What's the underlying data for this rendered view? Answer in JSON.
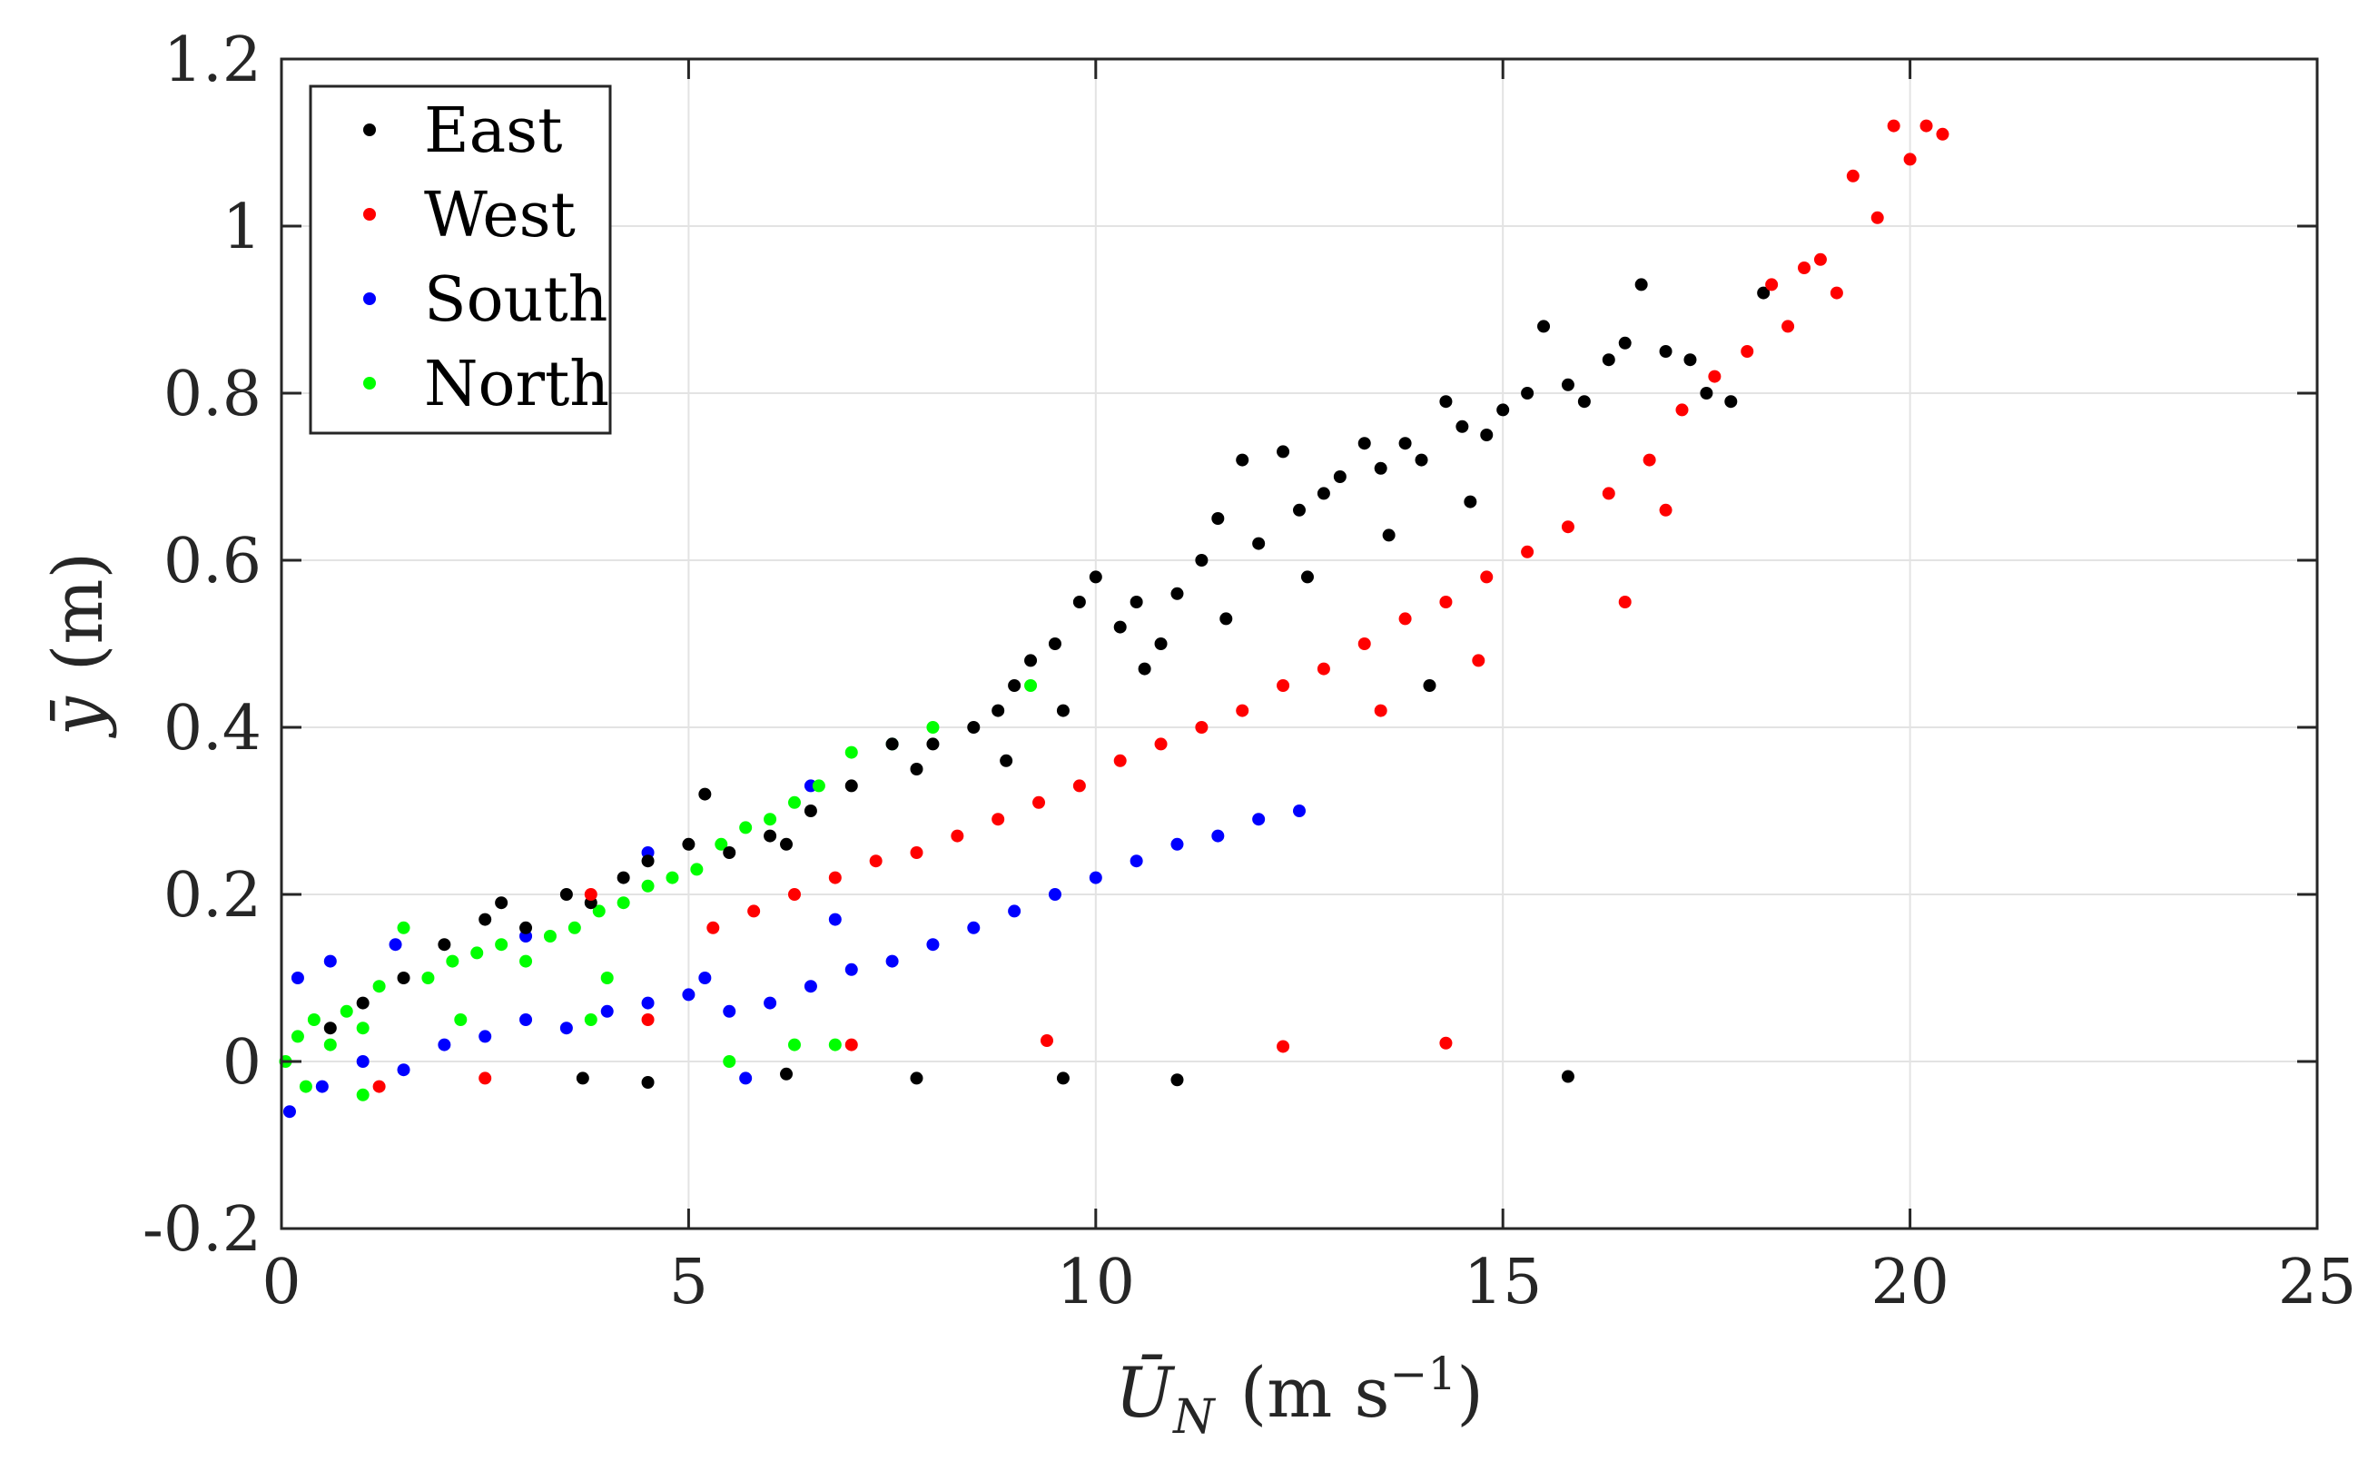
{
  "chart_data": {
    "type": "scatter",
    "title": "",
    "xlabel": "Ū_N (m s⁻¹)",
    "xlabel_parts": {
      "symbol": "Ū",
      "subscript": "N",
      "unit_open": "(m s",
      "unit_exp": "−1",
      "unit_close": ")"
    },
    "ylabel": "ȳ (m)",
    "ylabel_parts": {
      "symbol": "ȳ",
      "unit": "(m)"
    },
    "xlim": [
      0,
      25
    ],
    "ylim": [
      -0.2,
      1.2
    ],
    "xticks": [
      0,
      5,
      10,
      15,
      20,
      25
    ],
    "yticks": [
      -0.2,
      0,
      0.2,
      0.4,
      0.6,
      0.8,
      1,
      1.2
    ],
    "xtick_labels": [
      "0",
      "5",
      "10",
      "15",
      "20",
      "25"
    ],
    "ytick_labels": [
      "-0.2",
      "0",
      "0.2",
      "0.4",
      "0.6",
      "0.8",
      "1",
      "1.2"
    ],
    "grid": true,
    "legend_position": "top-left",
    "series": [
      {
        "name": "East",
        "color": "#000000",
        "points": [
          [
            0.6,
            0.04
          ],
          [
            1.0,
            0.07
          ],
          [
            1.5,
            0.1
          ],
          [
            2.0,
            0.14
          ],
          [
            2.5,
            0.17
          ],
          [
            2.7,
            0.19
          ],
          [
            3.0,
            0.16
          ],
          [
            3.5,
            0.2
          ],
          [
            3.8,
            0.19
          ],
          [
            4.2,
            0.22
          ],
          [
            4.5,
            0.24
          ],
          [
            5.0,
            0.26
          ],
          [
            5.2,
            0.32
          ],
          [
            5.5,
            0.25
          ],
          [
            6.0,
            0.27
          ],
          [
            6.2,
            0.26
          ],
          [
            6.5,
            0.3
          ],
          [
            7.0,
            0.33
          ],
          [
            7.5,
            0.38
          ],
          [
            7.8,
            0.35
          ],
          [
            8.0,
            0.38
          ],
          [
            8.5,
            0.4
          ],
          [
            8.8,
            0.42
          ],
          [
            9.0,
            0.45
          ],
          [
            9.2,
            0.48
          ],
          [
            9.5,
            0.5
          ],
          [
            9.8,
            0.55
          ],
          [
            10.0,
            0.58
          ],
          [
            10.3,
            0.52
          ],
          [
            10.5,
            0.55
          ],
          [
            10.8,
            0.5
          ],
          [
            11.0,
            0.56
          ],
          [
            11.3,
            0.6
          ],
          [
            11.5,
            0.65
          ],
          [
            11.8,
            0.72
          ],
          [
            12.0,
            0.62
          ],
          [
            12.3,
            0.73
          ],
          [
            12.5,
            0.66
          ],
          [
            12.8,
            0.68
          ],
          [
            13.0,
            0.7
          ],
          [
            13.3,
            0.74
          ],
          [
            13.5,
            0.71
          ],
          [
            13.8,
            0.74
          ],
          [
            14.0,
            0.72
          ],
          [
            14.3,
            0.79
          ],
          [
            14.5,
            0.76
          ],
          [
            14.8,
            0.75
          ],
          [
            15.0,
            0.78
          ],
          [
            15.3,
            0.8
          ],
          [
            15.5,
            0.88
          ],
          [
            15.8,
            0.81
          ],
          [
            16.0,
            0.79
          ],
          [
            16.3,
            0.84
          ],
          [
            16.5,
            0.86
          ],
          [
            16.7,
            0.93
          ],
          [
            17.0,
            0.85
          ],
          [
            17.3,
            0.84
          ],
          [
            17.5,
            0.8
          ],
          [
            8.9,
            0.36
          ],
          [
            9.6,
            0.42
          ],
          [
            10.6,
            0.47
          ],
          [
            11.6,
            0.53
          ],
          [
            12.6,
            0.58
          ],
          [
            13.6,
            0.63
          ],
          [
            14.6,
            0.67
          ],
          [
            3.7,
            -0.02
          ],
          [
            4.5,
            -0.025
          ],
          [
            6.2,
            -0.015
          ],
          [
            7.8,
            -0.02
          ],
          [
            9.6,
            -0.02
          ],
          [
            11.0,
            -0.022
          ],
          [
            15.8,
            -0.018
          ],
          [
            18.2,
            0.92
          ],
          [
            17.8,
            0.79
          ],
          [
            14.1,
            0.45
          ]
        ]
      },
      {
        "name": "West",
        "color": "#ff0000",
        "points": [
          [
            1.2,
            -0.03
          ],
          [
            2.5,
            -0.02
          ],
          [
            3.8,
            0.2
          ],
          [
            4.5,
            0.05
          ],
          [
            5.3,
            0.16
          ],
          [
            5.8,
            0.18
          ],
          [
            6.3,
            0.2
          ],
          [
            6.8,
            0.22
          ],
          [
            7.3,
            0.24
          ],
          [
            7.8,
            0.25
          ],
          [
            8.3,
            0.27
          ],
          [
            8.8,
            0.29
          ],
          [
            9.3,
            0.31
          ],
          [
            9.8,
            0.33
          ],
          [
            10.3,
            0.36
          ],
          [
            10.8,
            0.38
          ],
          [
            11.3,
            0.4
          ],
          [
            11.8,
            0.42
          ],
          [
            12.3,
            0.45
          ],
          [
            12.8,
            0.47
          ],
          [
            13.3,
            0.5
          ],
          [
            13.8,
            0.53
          ],
          [
            14.3,
            0.55
          ],
          [
            14.8,
            0.58
          ],
          [
            15.3,
            0.61
          ],
          [
            15.8,
            0.64
          ],
          [
            16.3,
            0.68
          ],
          [
            16.8,
            0.72
          ],
          [
            17.2,
            0.78
          ],
          [
            17.6,
            0.82
          ],
          [
            18.0,
            0.85
          ],
          [
            18.3,
            0.93
          ],
          [
            18.5,
            0.88
          ],
          [
            18.7,
            0.95
          ],
          [
            18.9,
            0.96
          ],
          [
            19.1,
            0.92
          ],
          [
            19.3,
            1.06
          ],
          [
            19.6,
            1.01
          ],
          [
            19.8,
            1.12
          ],
          [
            20.0,
            1.08
          ],
          [
            20.2,
            1.12
          ],
          [
            20.4,
            1.11
          ],
          [
            7.0,
            0.02
          ],
          [
            9.4,
            0.025
          ],
          [
            12.3,
            0.018
          ],
          [
            14.3,
            0.022
          ],
          [
            16.5,
            0.55
          ],
          [
            17.0,
            0.66
          ],
          [
            13.5,
            0.42
          ],
          [
            14.7,
            0.48
          ]
        ]
      },
      {
        "name": "South",
        "color": "#0000ff",
        "points": [
          [
            0.1,
            -0.06
          ],
          [
            0.5,
            -0.03
          ],
          [
            1.0,
            0.0
          ],
          [
            1.5,
            -0.01
          ],
          [
            2.0,
            0.02
          ],
          [
            2.5,
            0.03
          ],
          [
            3.0,
            0.05
          ],
          [
            3.5,
            0.04
          ],
          [
            4.0,
            0.06
          ],
          [
            4.5,
            0.07
          ],
          [
            5.0,
            0.08
          ],
          [
            5.5,
            0.06
          ],
          [
            6.0,
            0.07
          ],
          [
            6.5,
            0.09
          ],
          [
            7.0,
            0.11
          ],
          [
            7.5,
            0.12
          ],
          [
            8.0,
            0.14
          ],
          [
            8.5,
            0.16
          ],
          [
            9.0,
            0.18
          ],
          [
            9.5,
            0.2
          ],
          [
            10.0,
            0.22
          ],
          [
            10.5,
            0.24
          ],
          [
            11.0,
            0.26
          ],
          [
            11.5,
            0.27
          ],
          [
            12.0,
            0.29
          ],
          [
            12.5,
            0.3
          ],
          [
            5.7,
            -0.02
          ],
          [
            3.0,
            0.15
          ],
          [
            4.5,
            0.25
          ],
          [
            6.5,
            0.33
          ],
          [
            7.5,
            0.38
          ],
          [
            0.2,
            0.1
          ],
          [
            0.6,
            0.12
          ],
          [
            1.4,
            0.14
          ],
          [
            5.2,
            0.1
          ],
          [
            6.8,
            0.17
          ]
        ]
      },
      {
        "name": "North",
        "color": "#00ff00",
        "points": [
          [
            0.05,
            0.0
          ],
          [
            0.2,
            0.03
          ],
          [
            0.4,
            0.05
          ],
          [
            0.6,
            0.02
          ],
          [
            0.8,
            0.06
          ],
          [
            1.0,
            0.04
          ],
          [
            1.2,
            0.09
          ],
          [
            1.5,
            0.16
          ],
          [
            1.8,
            0.1
          ],
          [
            2.1,
            0.12
          ],
          [
            2.4,
            0.13
          ],
          [
            2.7,
            0.14
          ],
          [
            3.0,
            0.12
          ],
          [
            3.3,
            0.15
          ],
          [
            3.6,
            0.16
          ],
          [
            3.9,
            0.18
          ],
          [
            4.2,
            0.19
          ],
          [
            4.5,
            0.21
          ],
          [
            4.8,
            0.22
          ],
          [
            5.1,
            0.23
          ],
          [
            5.4,
            0.26
          ],
          [
            5.7,
            0.28
          ],
          [
            6.0,
            0.29
          ],
          [
            6.3,
            0.31
          ],
          [
            6.6,
            0.33
          ],
          [
            7.0,
            0.37
          ],
          [
            7.5,
            0.38
          ],
          [
            8.0,
            0.4
          ],
          [
            9.2,
            0.45
          ],
          [
            5.5,
            0.0
          ],
          [
            6.3,
            0.02
          ],
          [
            6.8,
            0.02
          ],
          [
            0.3,
            -0.03
          ],
          [
            1.0,
            -0.04
          ],
          [
            3.8,
            0.05
          ],
          [
            2.2,
            0.05
          ],
          [
            4.0,
            0.1
          ]
        ]
      }
    ]
  }
}
